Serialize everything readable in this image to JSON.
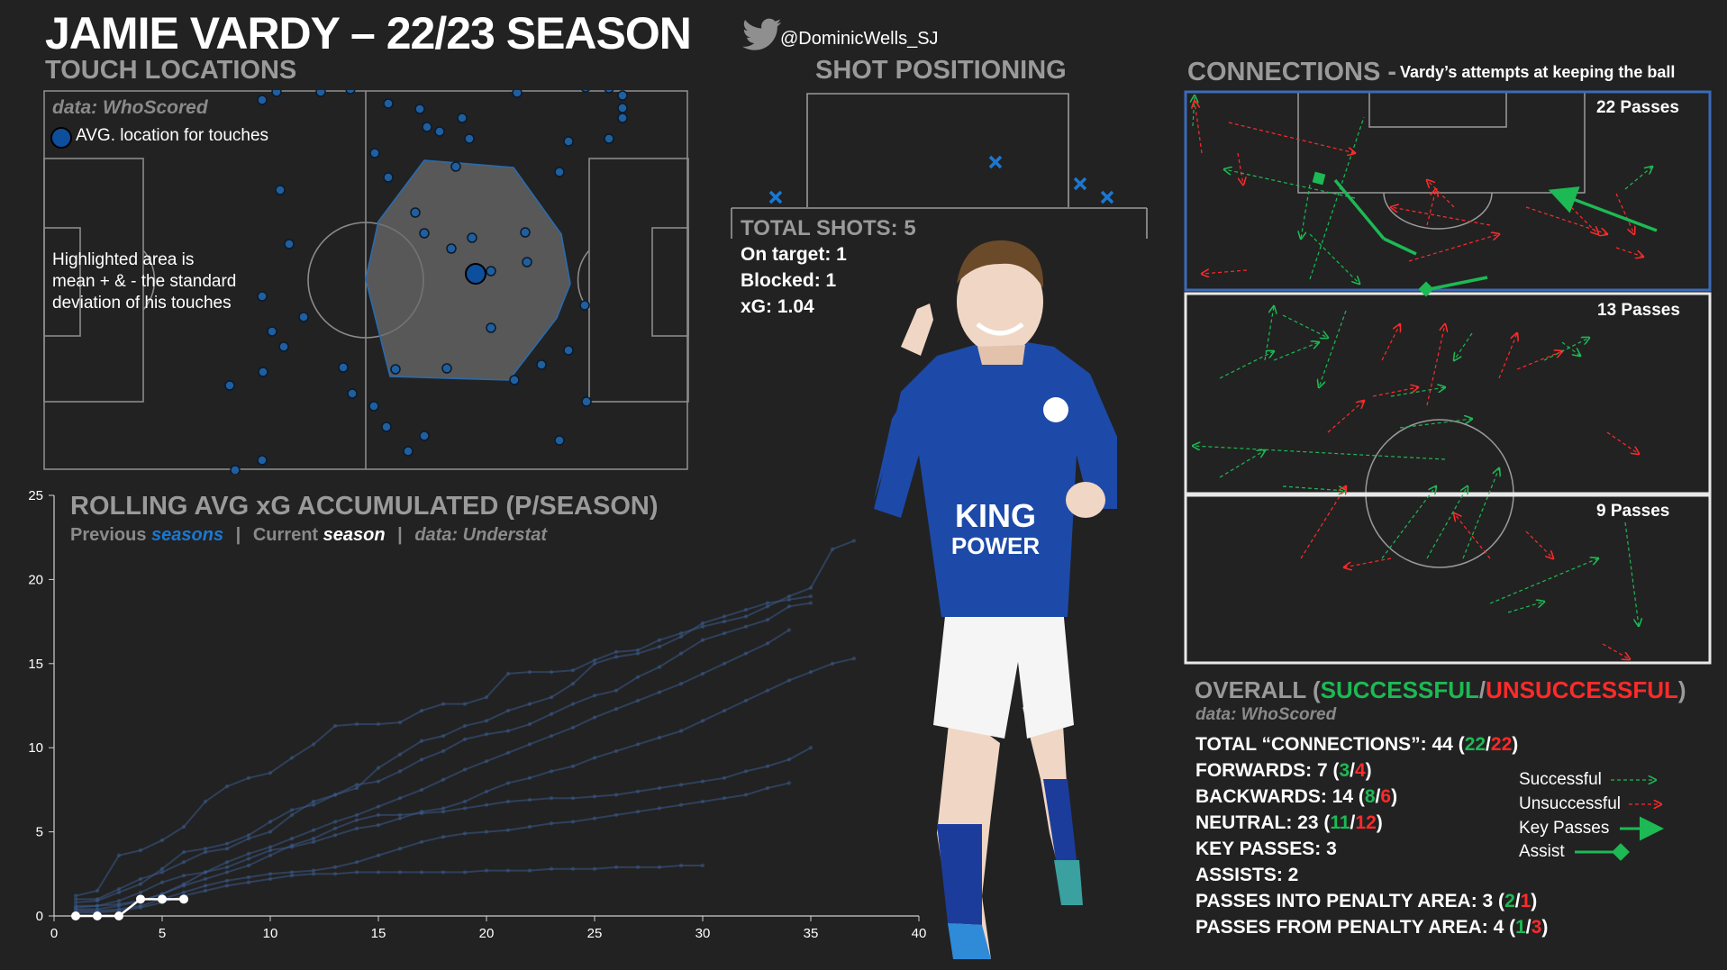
{
  "header": {
    "title": "JAMIE VARDY – 22/23 SEASON",
    "handle": "@DominicWells_SJ"
  },
  "touch": {
    "section": "TOUCH LOCATIONS",
    "source": "data: WhoScored",
    "legend": "AVG. location for touches",
    "note_lines": [
      "Highlighted area is",
      "mean + & - the standard",
      "deviation of his touches"
    ]
  },
  "shots": {
    "section": "SHOT POSITIONING",
    "total": "TOTAL SHOTS: 5",
    "on_target": "On target: 1",
    "blocked": "Blocked: 1",
    "xg": "xG: 1.04"
  },
  "connections": {
    "section": "CONNECTIONS",
    "dash": "-",
    "subtitle": "Vardy’s attempts at keeping the ball",
    "zones": [
      {
        "label": "22 Passes"
      },
      {
        "label": "13 Passes"
      },
      {
        "label": "9 Passes"
      }
    ]
  },
  "overall": {
    "word": "OVERALL (",
    "successful": "SUCCESSFUL",
    "slash": "/",
    "unsuccessful": "UNSUCCESSFUL",
    "close": ")",
    "source": "data: WhoScored",
    "rows": [
      {
        "label": "TOTAL “CONNECTIONS”: 44 (",
        "a": "22",
        "b": "22"
      },
      {
        "label": "FORWARDS: 7 (",
        "a": "3",
        "b": "4"
      },
      {
        "label": "BACKWARDS: 14 (",
        "a": "8",
        "b": "6"
      },
      {
        "label": "NEUTRAL: 23 (",
        "a": "11",
        "b": "12"
      }
    ],
    "plain_rows": [
      "KEY PASSES: 3",
      "ASSISTS: 2"
    ],
    "pa_rows": [
      {
        "label": "PASSES INTO PENALTY AREA: 3 (",
        "a": "2",
        "b": "1"
      },
      {
        "label": "PASSES FROM PENALTY AREA: 4 (",
        "a": "1",
        "b": "3"
      }
    ],
    "legend": [
      "Successful",
      "Unsuccessful",
      "Key Passes",
      "Assist"
    ]
  },
  "xg_chart": {
    "title": "ROLLING AVG xG ACCUMULATED (P/SEASON)",
    "sub_prev": "Previous ",
    "sub_prev_em": "seasons",
    "sub_cur": "Current ",
    "sub_cur_em": "season",
    "sub_source": "data: Understat",
    "sep": "|"
  },
  "colors": {
    "background": "#222222",
    "green": "#1db954",
    "red": "#ff2a2a",
    "blue": "#1a78d2",
    "dot": "#1f5fa0"
  },
  "chart_data": {
    "type": "line",
    "xlim": [
      0,
      40
    ],
    "ylim": [
      0,
      25
    ],
    "x_ticks": [
      0,
      5,
      10,
      15,
      20,
      25,
      30,
      35,
      40
    ],
    "y_ticks": [
      0,
      5,
      10,
      15,
      20,
      25
    ],
    "current_season": {
      "x": [
        1,
        2,
        3,
        4,
        5,
        6
      ],
      "y": [
        0.0,
        0.0,
        0.0,
        1.0,
        1.0,
        1.0
      ]
    },
    "previous_seasons": [
      {
        "x": [
          1,
          2,
          3,
          4,
          5,
          6,
          7,
          8,
          9,
          10,
          11,
          12,
          13,
          14,
          15,
          16,
          17,
          18,
          19,
          20,
          21,
          22,
          23,
          24,
          25,
          26,
          27,
          28,
          29,
          30,
          31,
          32,
          33,
          34,
          35,
          36,
          37
        ],
        "y": [
          1.2,
          1.5,
          3.6,
          3.9,
          4.5,
          5.3,
          6.8,
          7.7,
          8.2,
          8.5,
          9.4,
          10.2,
          11.3,
          11.4,
          11.4,
          11.5,
          12.2,
          12.6,
          12.6,
          13.0,
          14.4,
          14.5,
          14.5,
          14.6,
          15.2,
          15.7,
          15.8,
          16.4,
          16.8,
          17.2,
          17.5,
          17.8,
          18.4,
          19.0,
          19.5,
          21.8,
          22.3
        ]
      },
      {
        "x": [
          1,
          2,
          3,
          4,
          5,
          6,
          7,
          8,
          9,
          10,
          11,
          12,
          13,
          14,
          15,
          16,
          17,
          18,
          19,
          20,
          21,
          22,
          23,
          24,
          25,
          26,
          27,
          28,
          29,
          30,
          31,
          32,
          33,
          34,
          35
        ],
        "y": [
          1.0,
          1.0,
          1.6,
          2.2,
          2.6,
          3.2,
          3.8,
          4.0,
          4.6,
          5.0,
          6.0,
          6.8,
          7.2,
          7.6,
          8.8,
          9.6,
          10.4,
          10.7,
          11.3,
          11.6,
          12.2,
          12.6,
          13.0,
          13.8,
          15.0,
          15.4,
          15.6,
          16.0,
          16.6,
          17.4,
          17.8,
          18.2,
          18.6,
          18.8,
          19.0
        ]
      },
      {
        "x": [
          1,
          2,
          3,
          4,
          5,
          6,
          7,
          8,
          9,
          10,
          11,
          12,
          13,
          14,
          15,
          16,
          17,
          18,
          19,
          20,
          21,
          22,
          23,
          24,
          25,
          26,
          27,
          28,
          29,
          30,
          31,
          32,
          33,
          34,
          35
        ],
        "y": [
          0.8,
          0.9,
          1.4,
          1.9,
          2.8,
          3.8,
          4.0,
          4.3,
          4.8,
          5.6,
          6.3,
          6.6,
          7.2,
          7.8,
          8.0,
          8.6,
          9.3,
          9.8,
          10.5,
          10.8,
          11.0,
          11.4,
          12.0,
          12.6,
          13.1,
          13.4,
          14.2,
          14.8,
          15.6,
          16.4,
          16.8,
          17.2,
          17.6,
          18.4,
          18.6
        ]
      },
      {
        "x": [
          1,
          2,
          3,
          4,
          5,
          6,
          7,
          8,
          9,
          10,
          11,
          12,
          13,
          14,
          15,
          16,
          17,
          18,
          19,
          20,
          21,
          22,
          23,
          24,
          25,
          26,
          27,
          28,
          29,
          30,
          31,
          32,
          33,
          34
        ],
        "y": [
          0.6,
          0.6,
          0.7,
          0.9,
          1.3,
          1.9,
          2.6,
          3.2,
          3.7,
          4.1,
          4.6,
          5.1,
          5.6,
          6.0,
          6.5,
          7.0,
          7.5,
          8.1,
          8.7,
          9.2,
          9.7,
          10.2,
          10.7,
          11.2,
          11.8,
          12.3,
          12.8,
          13.3,
          13.8,
          14.4,
          15.0,
          15.6,
          16.2,
          17.0
        ]
      },
      {
        "x": [
          1,
          2,
          3,
          4,
          5,
          6,
          7,
          8,
          9,
          10,
          11,
          12,
          13,
          14,
          15,
          16,
          17,
          18,
          19,
          20,
          21,
          22,
          23,
          24,
          25,
          26,
          27,
          28,
          29,
          30,
          31,
          32,
          33,
          34,
          35,
          36,
          37
        ],
        "y": [
          0.5,
          0.6,
          0.9,
          1.4,
          2.0,
          2.4,
          2.6,
          2.9,
          3.4,
          3.9,
          4.1,
          4.4,
          4.8,
          5.2,
          5.4,
          5.8,
          6.2,
          6.4,
          6.8,
          7.4,
          7.9,
          8.2,
          8.6,
          8.9,
          9.4,
          9.8,
          10.2,
          10.6,
          11.0,
          11.6,
          12.2,
          12.8,
          13.4,
          14.0,
          14.5,
          15.0,
          15.3
        ]
      },
      {
        "x": [
          1,
          2,
          3,
          4,
          5,
          6,
          7,
          8,
          9,
          10,
          11,
          12,
          13,
          14,
          15,
          16,
          17,
          18,
          19,
          20,
          21,
          22,
          23,
          24,
          25,
          26,
          27,
          28,
          29,
          30,
          31,
          32,
          33,
          34,
          35
        ],
        "y": [
          0.4,
          0.4,
          0.6,
          0.9,
          1.3,
          1.8,
          2.2,
          2.6,
          3.0,
          3.6,
          4.2,
          4.6,
          5.2,
          5.7,
          6.0,
          6.0,
          6.1,
          6.2,
          6.4,
          6.6,
          6.8,
          6.9,
          7.0,
          7.0,
          7.1,
          7.2,
          7.4,
          7.6,
          7.8,
          8.0,
          8.2,
          8.6,
          8.9,
          9.3,
          10.0
        ]
      },
      {
        "x": [
          1,
          2,
          3,
          4,
          5,
          6,
          7,
          8,
          9,
          10,
          11,
          12,
          13,
          14,
          15,
          16,
          17,
          18,
          19,
          20,
          21,
          22,
          23,
          24,
          25,
          26,
          27,
          28,
          29,
          30,
          31,
          32,
          33,
          34
        ],
        "y": [
          0.3,
          0.3,
          0.4,
          0.6,
          1.0,
          1.4,
          1.8,
          2.1,
          2.3,
          2.5,
          2.6,
          2.7,
          2.9,
          3.2,
          3.6,
          4.0,
          4.4,
          4.7,
          4.9,
          5.0,
          5.1,
          5.3,
          5.5,
          5.6,
          5.8,
          6.0,
          6.2,
          6.4,
          6.6,
          6.8,
          7.0,
          7.2,
          7.6,
          7.9
        ]
      },
      {
        "x": [
          1,
          2,
          3,
          4,
          5,
          6,
          7,
          8,
          9,
          10,
          11,
          12,
          13,
          14,
          15,
          16,
          17,
          18,
          19,
          20,
          21,
          22,
          23,
          24,
          25,
          26,
          27,
          28,
          29,
          30
        ],
        "y": [
          0.2,
          0.2,
          0.3,
          0.5,
          0.8,
          1.2,
          1.5,
          1.8,
          2.0,
          2.2,
          2.4,
          2.5,
          2.5,
          2.6,
          2.6,
          2.6,
          2.6,
          2.6,
          2.6,
          2.7,
          2.7,
          2.7,
          2.8,
          2.8,
          2.8,
          2.9,
          2.9,
          2.9,
          3.0,
          3.0
        ]
      }
    ]
  }
}
